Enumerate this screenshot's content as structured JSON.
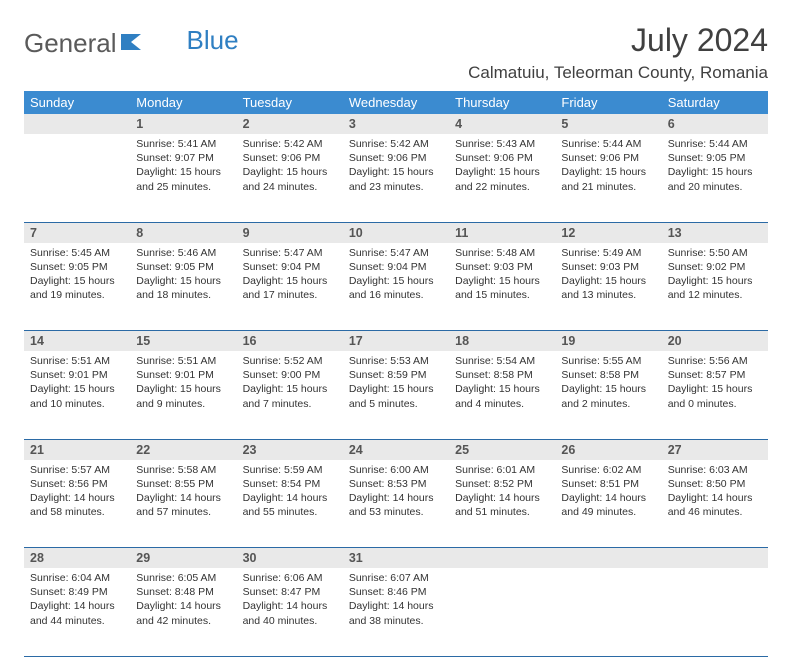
{
  "brand": {
    "part1": "General",
    "part2": "Blue"
  },
  "title": "July 2024",
  "subtitle": "Calmatuiu, Teleorman County, Romania",
  "colors": {
    "header_bg": "#3b8bd0",
    "header_text": "#ffffff",
    "daynum_bg": "#e9e9e9",
    "rule": "#2b6aa5",
    "body_text": "#333333"
  },
  "dayNames": [
    "Sunday",
    "Monday",
    "Tuesday",
    "Wednesday",
    "Thursday",
    "Friday",
    "Saturday"
  ],
  "startOffset": 1,
  "daysInMonth": 31,
  "days": {
    "1": {
      "sunrise": "5:41 AM",
      "sunset": "9:07 PM",
      "daylight": "15 hours and 25 minutes."
    },
    "2": {
      "sunrise": "5:42 AM",
      "sunset": "9:06 PM",
      "daylight": "15 hours and 24 minutes."
    },
    "3": {
      "sunrise": "5:42 AM",
      "sunset": "9:06 PM",
      "daylight": "15 hours and 23 minutes."
    },
    "4": {
      "sunrise": "5:43 AM",
      "sunset": "9:06 PM",
      "daylight": "15 hours and 22 minutes."
    },
    "5": {
      "sunrise": "5:44 AM",
      "sunset": "9:06 PM",
      "daylight": "15 hours and 21 minutes."
    },
    "6": {
      "sunrise": "5:44 AM",
      "sunset": "9:05 PM",
      "daylight": "15 hours and 20 minutes."
    },
    "7": {
      "sunrise": "5:45 AM",
      "sunset": "9:05 PM",
      "daylight": "15 hours and 19 minutes."
    },
    "8": {
      "sunrise": "5:46 AM",
      "sunset": "9:05 PM",
      "daylight": "15 hours and 18 minutes."
    },
    "9": {
      "sunrise": "5:47 AM",
      "sunset": "9:04 PM",
      "daylight": "15 hours and 17 minutes."
    },
    "10": {
      "sunrise": "5:47 AM",
      "sunset": "9:04 PM",
      "daylight": "15 hours and 16 minutes."
    },
    "11": {
      "sunrise": "5:48 AM",
      "sunset": "9:03 PM",
      "daylight": "15 hours and 15 minutes."
    },
    "12": {
      "sunrise": "5:49 AM",
      "sunset": "9:03 PM",
      "daylight": "15 hours and 13 minutes."
    },
    "13": {
      "sunrise": "5:50 AM",
      "sunset": "9:02 PM",
      "daylight": "15 hours and 12 minutes."
    },
    "14": {
      "sunrise": "5:51 AM",
      "sunset": "9:01 PM",
      "daylight": "15 hours and 10 minutes."
    },
    "15": {
      "sunrise": "5:51 AM",
      "sunset": "9:01 PM",
      "daylight": "15 hours and 9 minutes."
    },
    "16": {
      "sunrise": "5:52 AM",
      "sunset": "9:00 PM",
      "daylight": "15 hours and 7 minutes."
    },
    "17": {
      "sunrise": "5:53 AM",
      "sunset": "8:59 PM",
      "daylight": "15 hours and 5 minutes."
    },
    "18": {
      "sunrise": "5:54 AM",
      "sunset": "8:58 PM",
      "daylight": "15 hours and 4 minutes."
    },
    "19": {
      "sunrise": "5:55 AM",
      "sunset": "8:58 PM",
      "daylight": "15 hours and 2 minutes."
    },
    "20": {
      "sunrise": "5:56 AM",
      "sunset": "8:57 PM",
      "daylight": "15 hours and 0 minutes."
    },
    "21": {
      "sunrise": "5:57 AM",
      "sunset": "8:56 PM",
      "daylight": "14 hours and 58 minutes."
    },
    "22": {
      "sunrise": "5:58 AM",
      "sunset": "8:55 PM",
      "daylight": "14 hours and 57 minutes."
    },
    "23": {
      "sunrise": "5:59 AM",
      "sunset": "8:54 PM",
      "daylight": "14 hours and 55 minutes."
    },
    "24": {
      "sunrise": "6:00 AM",
      "sunset": "8:53 PM",
      "daylight": "14 hours and 53 minutes."
    },
    "25": {
      "sunrise": "6:01 AM",
      "sunset": "8:52 PM",
      "daylight": "14 hours and 51 minutes."
    },
    "26": {
      "sunrise": "6:02 AM",
      "sunset": "8:51 PM",
      "daylight": "14 hours and 49 minutes."
    },
    "27": {
      "sunrise": "6:03 AM",
      "sunset": "8:50 PM",
      "daylight": "14 hours and 46 minutes."
    },
    "28": {
      "sunrise": "6:04 AM",
      "sunset": "8:49 PM",
      "daylight": "14 hours and 44 minutes."
    },
    "29": {
      "sunrise": "6:05 AM",
      "sunset": "8:48 PM",
      "daylight": "14 hours and 42 minutes."
    },
    "30": {
      "sunrise": "6:06 AM",
      "sunset": "8:47 PM",
      "daylight": "14 hours and 40 minutes."
    },
    "31": {
      "sunrise": "6:07 AM",
      "sunset": "8:46 PM",
      "daylight": "14 hours and 38 minutes."
    }
  },
  "labels": {
    "sunrise": "Sunrise: ",
    "sunset": "Sunset: ",
    "daylight": "Daylight: "
  }
}
